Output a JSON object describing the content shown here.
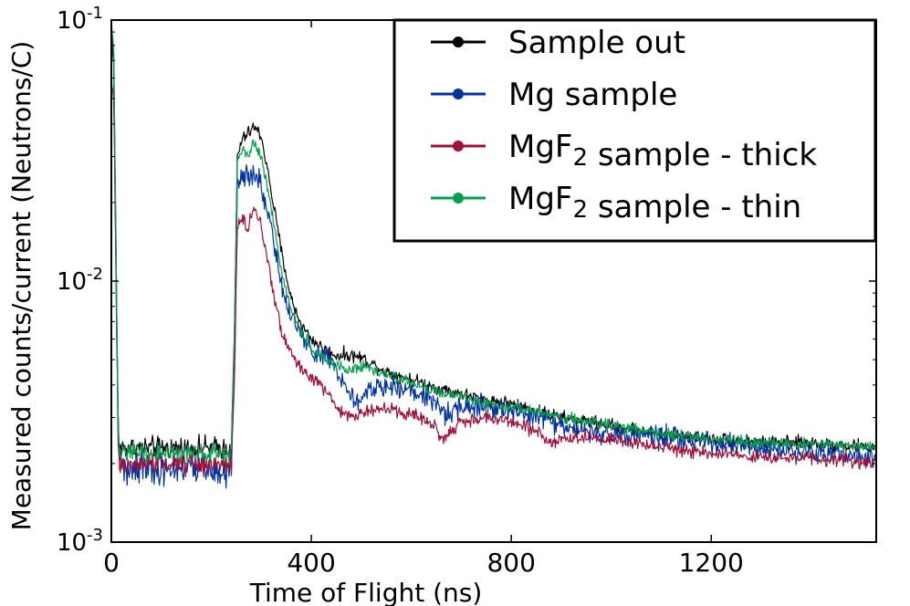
{
  "chart_data": {
    "type": "line",
    "title": "",
    "xlabel": "Time of Flight (ns)",
    "ylabel": "Measured counts/current (Neutrons/C)",
    "xlim": [
      0,
      1530
    ],
    "ylim": [
      0.001,
      0.1
    ],
    "yscale": "log",
    "grid": false,
    "legend_position": "top-right",
    "x_ticks": [
      0,
      400,
      800,
      1200
    ],
    "x_tick_labels": [
      "0",
      "400",
      "800",
      "1200"
    ],
    "y_ticks": [
      0.001,
      0.01,
      0.1
    ],
    "y_tick_labels": [
      {
        "base": "10",
        "exp": "-3"
      },
      {
        "base": "10",
        "exp": "-2"
      },
      {
        "base": "10",
        "exp": "-1"
      }
    ],
    "series": [
      {
        "name": "Sample out",
        "name_parts": [
          {
            "t": "Sample out"
          }
        ],
        "color": "#000000",
        "noise": 0.06,
        "points": [
          [
            0,
            0.098
          ],
          [
            5,
            0.07
          ],
          [
            9,
            0.015
          ],
          [
            13,
            0.0032
          ],
          [
            16,
            0.0023
          ],
          [
            100,
            0.0023
          ],
          [
            150,
            0.0023
          ],
          [
            200,
            0.0023
          ],
          [
            240,
            0.0023
          ],
          [
            246,
            0.006
          ],
          [
            252,
            0.03
          ],
          [
            262,
            0.035
          ],
          [
            275,
            0.037
          ],
          [
            285,
            0.039
          ],
          [
            300,
            0.036
          ],
          [
            320,
            0.022
          ],
          [
            340,
            0.013
          ],
          [
            360,
            0.0085
          ],
          [
            380,
            0.0068
          ],
          [
            400,
            0.006
          ],
          [
            430,
            0.0054
          ],
          [
            450,
            0.0052
          ],
          [
            480,
            0.0052
          ],
          [
            500,
            0.0051
          ],
          [
            550,
            0.0045
          ],
          [
            600,
            0.0042
          ],
          [
            650,
            0.0039
          ],
          [
            700,
            0.0037
          ],
          [
            750,
            0.0035
          ],
          [
            800,
            0.0034
          ],
          [
            850,
            0.0032
          ],
          [
            900,
            0.003
          ],
          [
            950,
            0.0029
          ],
          [
            1000,
            0.0028
          ],
          [
            1100,
            0.0026
          ],
          [
            1200,
            0.0025
          ],
          [
            1300,
            0.0024
          ],
          [
            1400,
            0.0024
          ],
          [
            1530,
            0.0023
          ]
        ]
      },
      {
        "name": "Mg sample",
        "name_parts": [
          {
            "t": "Mg sample"
          }
        ],
        "color": "#0033a0",
        "noise": 0.1,
        "points": [
          [
            0,
            0.095
          ],
          [
            5,
            0.06
          ],
          [
            9,
            0.012
          ],
          [
            13,
            0.0028
          ],
          [
            16,
            0.002
          ],
          [
            100,
            0.0019
          ],
          [
            150,
            0.0019
          ],
          [
            200,
            0.0019
          ],
          [
            240,
            0.0019
          ],
          [
            246,
            0.005
          ],
          [
            252,
            0.022
          ],
          [
            262,
            0.026
          ],
          [
            275,
            0.025
          ],
          [
            285,
            0.027
          ],
          [
            300,
            0.023
          ],
          [
            320,
            0.016
          ],
          [
            340,
            0.0095
          ],
          [
            360,
            0.0072
          ],
          [
            380,
            0.0062
          ],
          [
            400,
            0.0055
          ],
          [
            430,
            0.0052
          ],
          [
            450,
            0.0046
          ],
          [
            470,
            0.004
          ],
          [
            480,
            0.0037
          ],
          [
            495,
            0.0034
          ],
          [
            510,
            0.0038
          ],
          [
            550,
            0.004
          ],
          [
            600,
            0.0038
          ],
          [
            650,
            0.0035
          ],
          [
            665,
            0.0031
          ],
          [
            700,
            0.0033
          ],
          [
            750,
            0.0033
          ],
          [
            800,
            0.0032
          ],
          [
            850,
            0.003
          ],
          [
            900,
            0.0028
          ],
          [
            950,
            0.0027
          ],
          [
            1000,
            0.0026
          ],
          [
            1100,
            0.0025
          ],
          [
            1200,
            0.0024
          ],
          [
            1300,
            0.0023
          ],
          [
            1400,
            0.0022
          ],
          [
            1530,
            0.0021
          ]
        ]
      },
      {
        "name": "MgF2 sample - thick",
        "name_parts": [
          {
            "t": "MgF"
          },
          {
            "t": "2",
            "sub": true
          },
          {
            "t": " sample - thick"
          }
        ],
        "color": "#a0103a",
        "noise": 0.06,
        "points": [
          [
            0,
            0.062
          ],
          [
            5,
            0.05
          ],
          [
            9,
            0.012
          ],
          [
            13,
            0.0028
          ],
          [
            16,
            0.002
          ],
          [
            100,
            0.002
          ],
          [
            150,
            0.002
          ],
          [
            200,
            0.002
          ],
          [
            240,
            0.002
          ],
          [
            246,
            0.004
          ],
          [
            252,
            0.016
          ],
          [
            262,
            0.018
          ],
          [
            272,
            0.016
          ],
          [
            280,
            0.018
          ],
          [
            288,
            0.019
          ],
          [
            300,
            0.016
          ],
          [
            320,
            0.01
          ],
          [
            340,
            0.0065
          ],
          [
            360,
            0.0052
          ],
          [
            380,
            0.0046
          ],
          [
            400,
            0.0043
          ],
          [
            430,
            0.0038
          ],
          [
            450,
            0.0033
          ],
          [
            480,
            0.003
          ],
          [
            500,
            0.0032
          ],
          [
            550,
            0.0032
          ],
          [
            600,
            0.0031
          ],
          [
            650,
            0.0028
          ],
          [
            660,
            0.0025
          ],
          [
            700,
            0.0029
          ],
          [
            750,
            0.003
          ],
          [
            800,
            0.0029
          ],
          [
            850,
            0.0027
          ],
          [
            880,
            0.0024
          ],
          [
            900,
            0.0025
          ],
          [
            950,
            0.0025
          ],
          [
            1000,
            0.0025
          ],
          [
            1100,
            0.0023
          ],
          [
            1200,
            0.0022
          ],
          [
            1300,
            0.0021
          ],
          [
            1400,
            0.0021
          ],
          [
            1530,
            0.002
          ]
        ]
      },
      {
        "name": "MgF2 sample - thin",
        "name_parts": [
          {
            "t": "MgF"
          },
          {
            "t": "2",
            "sub": true
          },
          {
            "t": " sample - thin"
          }
        ],
        "color": "#00a050",
        "noise": 0.05,
        "points": [
          [
            0,
            0.098
          ],
          [
            5,
            0.07
          ],
          [
            9,
            0.015
          ],
          [
            13,
            0.0032
          ],
          [
            16,
            0.0022
          ],
          [
            100,
            0.0022
          ],
          [
            150,
            0.0022
          ],
          [
            200,
            0.0022
          ],
          [
            240,
            0.0022
          ],
          [
            246,
            0.006
          ],
          [
            252,
            0.029
          ],
          [
            262,
            0.032
          ],
          [
            275,
            0.031
          ],
          [
            285,
            0.034
          ],
          [
            300,
            0.03
          ],
          [
            320,
            0.019
          ],
          [
            340,
            0.011
          ],
          [
            360,
            0.0078
          ],
          [
            380,
            0.0064
          ],
          [
            400,
            0.0055
          ],
          [
            430,
            0.005
          ],
          [
            450,
            0.0047
          ],
          [
            480,
            0.0046
          ],
          [
            500,
            0.0047
          ],
          [
            550,
            0.0044
          ],
          [
            600,
            0.0041
          ],
          [
            650,
            0.0038
          ],
          [
            700,
            0.0036
          ],
          [
            750,
            0.0034
          ],
          [
            800,
            0.0033
          ],
          [
            850,
            0.0032
          ],
          [
            900,
            0.003
          ],
          [
            950,
            0.0029
          ],
          [
            1000,
            0.0028
          ],
          [
            1100,
            0.0026
          ],
          [
            1200,
            0.0025
          ],
          [
            1300,
            0.0024
          ],
          [
            1400,
            0.0024
          ],
          [
            1530,
            0.0023
          ]
        ]
      }
    ]
  }
}
